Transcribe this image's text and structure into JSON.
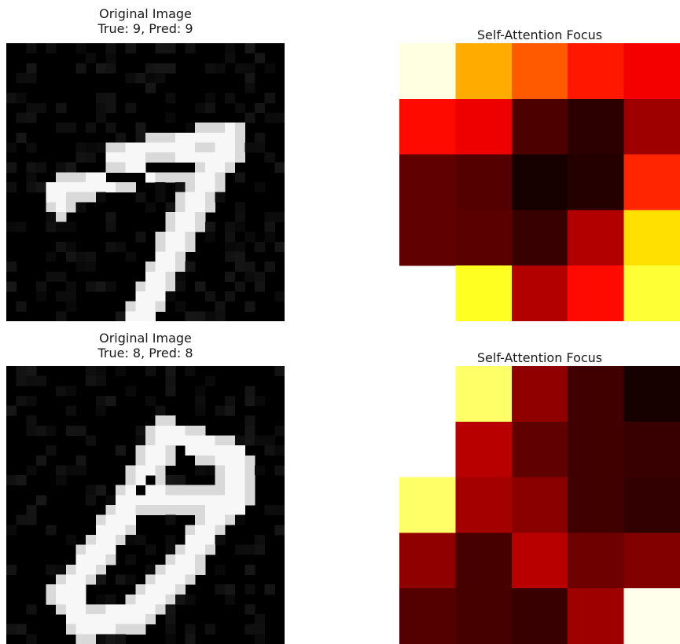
{
  "panels": [
    {
      "image_title": "Original Image",
      "image_subtitle": "True: 9, Pred: 9",
      "attention_title": "Self-Attention Focus"
    },
    {
      "image_title": "Original Image",
      "image_subtitle": "True: 8, Pred: 8",
      "attention_title": "Self-Attention Focus"
    }
  ],
  "chart_data": [
    {
      "type": "image",
      "title": "Original Image\nTrue: 9, Pred: 9",
      "colormap": "gray",
      "resolution": [
        28,
        28
      ],
      "content": "handwritten digit (grayscale MNIST-style, white strokes on black)",
      "true_label": 9,
      "pred_label": 9
    },
    {
      "type": "heatmap",
      "title": "Self-Attention Focus",
      "colormap": "hot",
      "rows": 5,
      "cols": 5,
      "note": "values are relative intensities 0 (black) to 1 (white); null = blank cell",
      "values": [
        [
          0.97,
          0.62,
          0.5,
          0.4,
          0.35
        ],
        [
          0.38,
          0.34,
          0.1,
          0.05,
          0.22
        ],
        [
          0.13,
          0.11,
          0.02,
          0.04,
          0.42
        ],
        [
          0.13,
          0.12,
          0.07,
          0.25,
          0.7
        ],
        [
          null,
          0.78,
          0.25,
          0.38,
          0.8
        ]
      ]
    },
    {
      "type": "image",
      "title": "Original Image\nTrue: 8, Pred: 8",
      "colormap": "gray",
      "resolution": [
        28,
        28
      ],
      "content": "handwritten digit (grayscale MNIST-style, white strokes on black)",
      "true_label": 8,
      "pred_label": 8
    },
    {
      "type": "heatmap",
      "title": "Self-Attention Focus",
      "colormap": "hot",
      "rows": 5,
      "cols": 5,
      "note": "values are relative intensities 0 (black) to 1 (white); null = blank cell",
      "values": [
        [
          null,
          0.85,
          0.2,
          0.08,
          0.02
        ],
        [
          null,
          0.26,
          0.13,
          0.08,
          0.07
        ],
        [
          0.85,
          0.23,
          0.19,
          0.08,
          0.06
        ],
        [
          0.2,
          0.09,
          0.26,
          0.15,
          0.18
        ],
        [
          0.11,
          0.09,
          0.07,
          0.22,
          0.98
        ]
      ]
    }
  ]
}
